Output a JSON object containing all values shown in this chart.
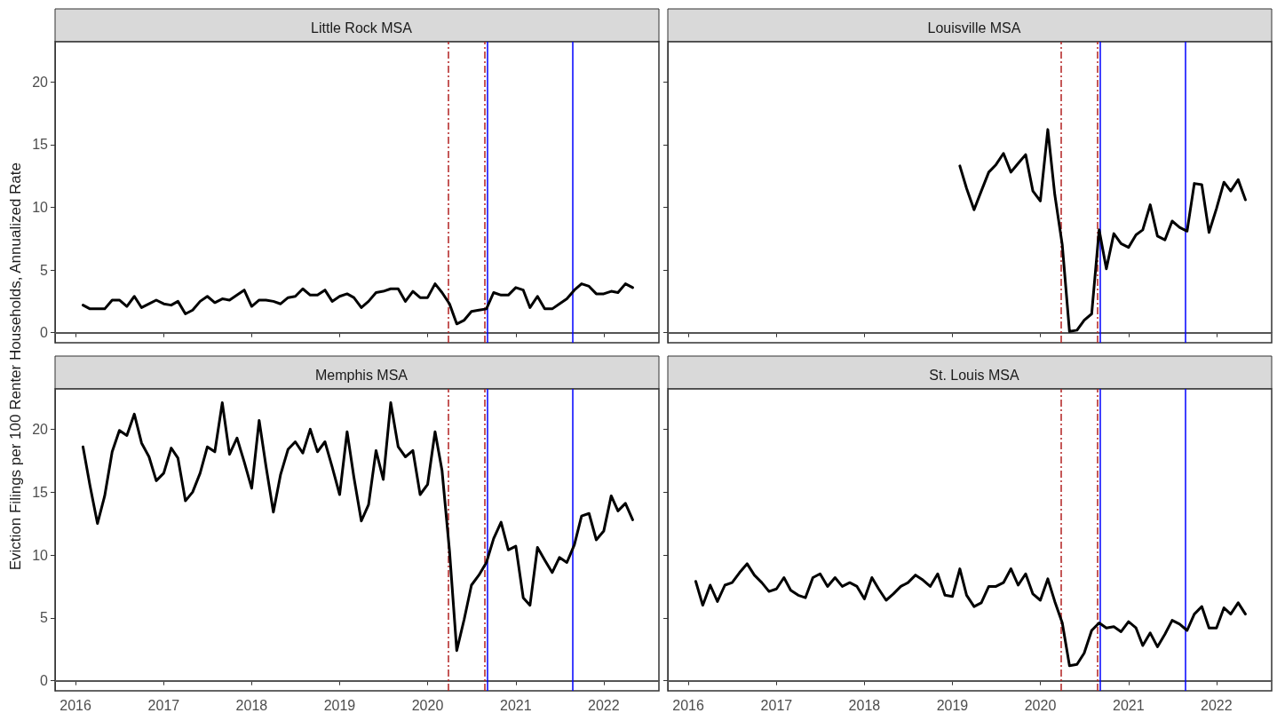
{
  "chart_data": [
    {
      "type": "line",
      "title": "Little Rock MSA",
      "ylabel": "Eviction Filings per 100 Renter Households, Annualized Rate",
      "xlim": [
        "2015-10-08",
        "2022-08-18"
      ],
      "xticks": [
        "2016",
        "2017",
        "2018",
        "2019",
        "2020",
        "2021",
        "2022"
      ],
      "ylim": [
        -0.8,
        23.2
      ],
      "yticks": [
        0,
        5,
        10,
        15,
        20
      ],
      "grid": false,
      "marker": "none",
      "line_style": "solid",
      "tick_labels": "y",
      "x": [
        "2016-02",
        "2016-03",
        "2016-04",
        "2016-05",
        "2016-06",
        "2016-07",
        "2016-08",
        "2016-09",
        "2016-10",
        "2016-11",
        "2016-12",
        "2017-01",
        "2017-02",
        "2017-03",
        "2017-04",
        "2017-05",
        "2017-06",
        "2017-07",
        "2017-08",
        "2017-09",
        "2017-10",
        "2017-11",
        "2017-12",
        "2018-01",
        "2018-02",
        "2018-03",
        "2018-04",
        "2018-05",
        "2018-06",
        "2018-07",
        "2018-08",
        "2018-09",
        "2018-10",
        "2018-11",
        "2018-12",
        "2019-01",
        "2019-02",
        "2019-03",
        "2019-04",
        "2019-05",
        "2019-06",
        "2019-07",
        "2019-08",
        "2019-09",
        "2019-10",
        "2019-11",
        "2019-12",
        "2020-01",
        "2020-02",
        "2020-03",
        "2020-04",
        "2020-05",
        "2020-06",
        "2020-07",
        "2020-08",
        "2020-09",
        "2020-10",
        "2020-11",
        "2020-12",
        "2021-01",
        "2021-02",
        "2021-03",
        "2021-04",
        "2021-05",
        "2021-06",
        "2021-07",
        "2021-08",
        "2021-09",
        "2021-10",
        "2021-11",
        "2021-12",
        "2022-01",
        "2022-02",
        "2022-03",
        "2022-04",
        "2022-05"
      ],
      "series": [
        {
          "color": "#000000",
          "values": [
            2.2,
            1.9,
            1.9,
            1.9,
            2.6,
            2.6,
            2.1,
            2.9,
            2.0,
            2.3,
            2.6,
            2.3,
            2.2,
            2.5,
            1.5,
            1.8,
            2.5,
            2.9,
            2.4,
            2.7,
            2.6,
            3.0,
            3.4,
            2.1,
            2.6,
            2.6,
            2.5,
            2.3,
            2.8,
            2.9,
            3.5,
            3.0,
            3.0,
            3.4,
            2.5,
            2.9,
            3.1,
            2.8,
            2.0,
            2.5,
            3.2,
            3.3,
            3.5,
            3.5,
            2.5,
            3.3,
            2.8,
            2.8,
            3.9,
            3.2,
            2.3,
            0.7,
            1.0,
            1.7,
            1.8,
            1.9,
            3.2,
            3.0,
            3.0,
            3.6,
            3.4,
            2.0,
            2.9,
            1.9,
            1.9,
            2.3,
            2.7,
            3.4,
            3.9,
            3.7,
            3.1,
            3.1,
            3.3,
            3.2,
            3.9,
            3.6
          ]
        }
      ],
      "ref_lines": [
        {
          "axis": "y",
          "value": 0,
          "color": "#555555",
          "line_style": "solid"
        },
        {
          "axis": "x",
          "value": "2020-03-27",
          "color": "#b22222",
          "line_style": "dashed"
        },
        {
          "axis": "x",
          "value": "2020-08-24",
          "color": "#b22222",
          "line_style": "dashed"
        },
        {
          "axis": "x",
          "value": "2020-09-04",
          "color": "#0000ff",
          "line_style": "solid"
        },
        {
          "axis": "x",
          "value": "2021-08-26",
          "color": "#0000ff",
          "line_style": "solid"
        }
      ]
    },
    {
      "type": "line",
      "title": "Louisville MSA",
      "xlim": [
        "2015-10-08",
        "2022-08-18"
      ],
      "xticks": [
        "2016",
        "2017",
        "2018",
        "2019",
        "2020",
        "2021",
        "2022"
      ],
      "ylim": [
        -0.8,
        23.2
      ],
      "yticks": [
        0,
        5,
        10,
        15,
        20
      ],
      "grid": false,
      "marker": "none",
      "line_style": "solid",
      "tick_labels": false,
      "x": [
        "2019-02",
        "2019-03",
        "2019-04",
        "2019-05",
        "2019-06",
        "2019-07",
        "2019-08",
        "2019-09",
        "2019-10",
        "2019-11",
        "2019-12",
        "2020-01",
        "2020-02",
        "2020-03",
        "2020-04",
        "2020-05",
        "2020-06",
        "2020-07",
        "2020-08",
        "2020-09",
        "2020-10",
        "2020-11",
        "2020-12",
        "2021-01",
        "2021-02",
        "2021-03",
        "2021-04",
        "2021-05",
        "2021-06",
        "2021-07",
        "2021-08",
        "2021-09",
        "2021-10",
        "2021-11",
        "2021-12",
        "2022-01",
        "2022-02",
        "2022-03",
        "2022-04",
        "2022-05"
      ],
      "series": [
        {
          "color": "#000000",
          "values": [
            13.3,
            11.5,
            9.8,
            11.3,
            12.8,
            13.4,
            14.3,
            12.8,
            13.5,
            14.2,
            11.3,
            10.5,
            16.2,
            11.0,
            7.0,
            0.1,
            0.2,
            1.0,
            1.5,
            8.2,
            5.1,
            7.9,
            7.1,
            6.8,
            7.8,
            8.2,
            10.2,
            7.7,
            7.4,
            8.9,
            8.4,
            8.1,
            11.9,
            11.8,
            8.0,
            9.9,
            12.0,
            11.3,
            12.2,
            10.6
          ]
        }
      ],
      "ref_lines": [
        {
          "axis": "y",
          "value": 0,
          "color": "#555555",
          "line_style": "solid"
        },
        {
          "axis": "x",
          "value": "2020-03-27",
          "color": "#b22222",
          "line_style": "dashed"
        },
        {
          "axis": "x",
          "value": "2020-08-24",
          "color": "#b22222",
          "line_style": "dashed"
        },
        {
          "axis": "x",
          "value": "2020-09-04",
          "color": "#0000ff",
          "line_style": "solid"
        },
        {
          "axis": "x",
          "value": "2021-08-26",
          "color": "#0000ff",
          "line_style": "solid"
        }
      ]
    },
    {
      "type": "line",
      "title": "Memphis MSA",
      "xlim": [
        "2015-10-08",
        "2022-08-18"
      ],
      "xticks": [
        "2016",
        "2017",
        "2018",
        "2019",
        "2020",
        "2021",
        "2022"
      ],
      "ylim": [
        -0.8,
        23.2
      ],
      "yticks": [
        0,
        5,
        10,
        15,
        20
      ],
      "grid": false,
      "marker": "none",
      "line_style": "solid",
      "x": [
        "2016-02",
        "2016-03",
        "2016-04",
        "2016-05",
        "2016-06",
        "2016-07",
        "2016-08",
        "2016-09",
        "2016-10",
        "2016-11",
        "2016-12",
        "2017-01",
        "2017-02",
        "2017-03",
        "2017-04",
        "2017-05",
        "2017-06",
        "2017-07",
        "2017-08",
        "2017-09",
        "2017-10",
        "2017-11",
        "2017-12",
        "2018-01",
        "2018-02",
        "2018-03",
        "2018-04",
        "2018-05",
        "2018-06",
        "2018-07",
        "2018-08",
        "2018-09",
        "2018-10",
        "2018-11",
        "2018-12",
        "2019-01",
        "2019-02",
        "2019-03",
        "2019-04",
        "2019-05",
        "2019-06",
        "2019-07",
        "2019-08",
        "2019-09",
        "2019-10",
        "2019-11",
        "2019-12",
        "2020-01",
        "2020-02",
        "2020-03",
        "2020-04",
        "2020-05",
        "2020-06",
        "2020-07",
        "2020-08",
        "2020-09",
        "2020-10",
        "2020-11",
        "2020-12",
        "2021-01",
        "2021-02",
        "2021-03",
        "2021-04",
        "2021-05",
        "2021-06",
        "2021-07",
        "2021-08",
        "2021-09",
        "2021-10",
        "2021-11",
        "2021-12",
        "2022-01",
        "2022-02",
        "2022-03",
        "2022-04",
        "2022-05"
      ],
      "series": [
        {
          "color": "#000000",
          "values": [
            18.6,
            15.5,
            12.5,
            14.7,
            18.2,
            19.9,
            19.5,
            21.2,
            18.9,
            17.8,
            15.9,
            16.5,
            18.5,
            17.7,
            14.3,
            15.0,
            16.5,
            18.6,
            18.2,
            22.1,
            18.0,
            19.3,
            17.4,
            15.3,
            20.7,
            17.1,
            13.4,
            16.4,
            18.4,
            19.0,
            18.1,
            20.0,
            18.2,
            19.0,
            17.0,
            14.8,
            19.8,
            16.2,
            12.7,
            14.0,
            18.3,
            16.0,
            22.1,
            18.6,
            17.8,
            18.3,
            14.8,
            15.6,
            19.8,
            16.7,
            10.3,
            2.4,
            4.9,
            7.6,
            8.4,
            9.4,
            11.3,
            12.6,
            10.4,
            10.7,
            6.6,
            6.0,
            10.6,
            9.6,
            8.6,
            9.8,
            9.4,
            10.8,
            13.1,
            13.3,
            11.2,
            11.9,
            14.7,
            13.5,
            14.1,
            12.8
          ]
        }
      ],
      "ref_lines": [
        {
          "axis": "y",
          "value": 0,
          "color": "#555555",
          "line_style": "solid"
        },
        {
          "axis": "x",
          "value": "2020-03-27",
          "color": "#b22222",
          "line_style": "dashed"
        },
        {
          "axis": "x",
          "value": "2020-08-24",
          "color": "#b22222",
          "line_style": "dashed"
        },
        {
          "axis": "x",
          "value": "2020-09-04",
          "color": "#0000ff",
          "line_style": "solid"
        },
        {
          "axis": "x",
          "value": "2021-08-26",
          "color": "#0000ff",
          "line_style": "solid"
        }
      ]
    },
    {
      "type": "line",
      "title": "St. Louis MSA",
      "xlim": [
        "2015-10-08",
        "2022-08-18"
      ],
      "xticks": [
        "2016",
        "2017",
        "2018",
        "2019",
        "2020",
        "2021",
        "2022"
      ],
      "ylim": [
        -0.8,
        23.2
      ],
      "yticks": [
        0,
        5,
        10,
        15,
        20
      ],
      "grid": false,
      "marker": "none",
      "line_style": "solid",
      "tick_labels": "x",
      "x": [
        "2016-02",
        "2016-03",
        "2016-04",
        "2016-05",
        "2016-06",
        "2016-07",
        "2016-08",
        "2016-09",
        "2016-10",
        "2016-11",
        "2016-12",
        "2017-01",
        "2017-02",
        "2017-03",
        "2017-04",
        "2017-05",
        "2017-06",
        "2017-07",
        "2017-08",
        "2017-09",
        "2017-10",
        "2017-11",
        "2017-12",
        "2018-01",
        "2018-02",
        "2018-03",
        "2018-04",
        "2018-05",
        "2018-06",
        "2018-07",
        "2018-08",
        "2018-09",
        "2018-10",
        "2018-11",
        "2018-12",
        "2019-01",
        "2019-02",
        "2019-03",
        "2019-04",
        "2019-05",
        "2019-06",
        "2019-07",
        "2019-08",
        "2019-09",
        "2019-10",
        "2019-11",
        "2019-12",
        "2020-01",
        "2020-02",
        "2020-03",
        "2020-04",
        "2020-05",
        "2020-06",
        "2020-07",
        "2020-08",
        "2020-09",
        "2020-10",
        "2020-11",
        "2020-12",
        "2021-01",
        "2021-02",
        "2021-03",
        "2021-04",
        "2021-05",
        "2021-06",
        "2021-07",
        "2021-08",
        "2021-09",
        "2021-10",
        "2021-11",
        "2021-12",
        "2022-01",
        "2022-02",
        "2022-03",
        "2022-04",
        "2022-05"
      ],
      "series": [
        {
          "color": "#000000",
          "values": [
            7.9,
            6.0,
            7.6,
            6.3,
            7.6,
            7.8,
            8.6,
            9.3,
            8.4,
            7.8,
            7.1,
            7.3,
            8.2,
            7.2,
            6.8,
            6.6,
            8.2,
            8.5,
            7.5,
            8.2,
            7.5,
            7.8,
            7.5,
            6.5,
            8.2,
            7.3,
            6.4,
            6.9,
            7.5,
            7.8,
            8.4,
            8.0,
            7.5,
            8.5,
            6.8,
            6.7,
            8.9,
            6.8,
            5.9,
            6.2,
            7.5,
            7.5,
            7.8,
            8.9,
            7.6,
            8.5,
            6.9,
            6.4,
            8.1,
            6.3,
            4.6,
            1.2,
            1.3,
            2.2,
            4.0,
            4.6,
            4.2,
            4.3,
            3.9,
            4.7,
            4.2,
            2.8,
            3.8,
            2.7,
            3.7,
            4.8,
            4.5,
            4.0,
            5.3,
            5.9,
            4.2,
            4.2,
            5.8,
            5.3,
            6.2,
            5.3
          ]
        }
      ],
      "ref_lines": [
        {
          "axis": "y",
          "value": 0,
          "color": "#555555",
          "line_style": "solid"
        },
        {
          "axis": "x",
          "value": "2020-03-27",
          "color": "#b22222",
          "line_style": "dashed"
        },
        {
          "axis": "x",
          "value": "2020-08-24",
          "color": "#b22222",
          "line_style": "dashed"
        },
        {
          "axis": "x",
          "value": "2020-09-04",
          "color": "#0000ff",
          "line_style": "solid"
        },
        {
          "axis": "x",
          "value": "2021-08-26",
          "color": "#0000ff",
          "line_style": "solid"
        }
      ]
    }
  ]
}
